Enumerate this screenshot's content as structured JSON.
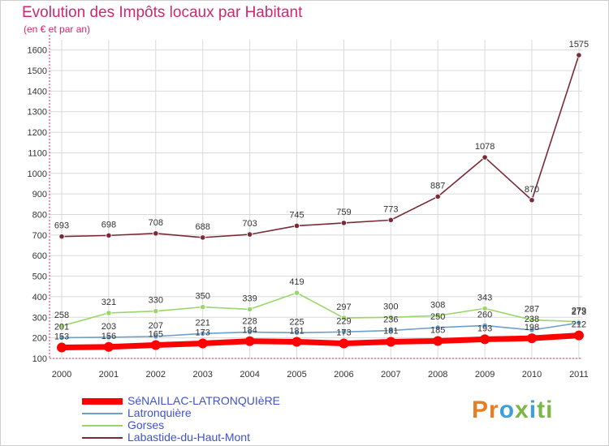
{
  "header": {
    "title": "Evolution des Impôts locaux par Habitant",
    "subtitle": "(en € et par an)"
  },
  "logo": {
    "text": "Proxiti"
  },
  "colors": {
    "title": "#d2266f",
    "legend_text": "#3f53c9",
    "grid": "#d9d9d9",
    "axis": "#d2266f"
  },
  "chart_data": {
    "type": "line",
    "title": "Evolution des Impôts locaux par Habitant",
    "subtitle": "(en € et par an)",
    "xlabel": "",
    "ylabel": "",
    "x": [
      "2000",
      "2001",
      "2002",
      "2003",
      "2004",
      "2005",
      "2006",
      "2007",
      "2008",
      "2009",
      "2010",
      "2011"
    ],
    "ylim": [
      100,
      1650
    ],
    "yticks": [
      100,
      200,
      300,
      400,
      500,
      600,
      700,
      800,
      900,
      1000,
      1100,
      1200,
      1300,
      1400,
      1500,
      1600
    ],
    "grid": true,
    "legend_position": "bottom-left",
    "series": [
      {
        "name": "Labastide-du-Haut-Mont",
        "color": "#7a2a35",
        "values": [
          693,
          698,
          708,
          688,
          703,
          745,
          759,
          773,
          887,
          1078,
          870,
          1575
        ],
        "labels": [
          "693",
          "698",
          "708",
          "688",
          "703",
          "745",
          "759",
          "773",
          "887",
          "1078",
          "870",
          "1575"
        ]
      },
      {
        "name": "Gorses",
        "color": "#9ad66a",
        "values": [
          258,
          321,
          330,
          350,
          339,
          419,
          297,
          300,
          308,
          343,
          287,
          279
        ],
        "labels": [
          "258",
          "321",
          "330",
          "350",
          "339",
          "419",
          "297",
          "300",
          "308",
          "343",
          "287",
          "279"
        ]
      },
      {
        "name": "Latronquière",
        "color": "#6c9fc9",
        "values": [
          201,
          203,
          207,
          221,
          228,
          225,
          229,
          236,
          250,
          260,
          238,
          273
        ],
        "labels": [
          "201",
          "203",
          "207",
          "221",
          "228",
          "225",
          "229",
          "236",
          "250",
          "260",
          "238",
          "273"
        ]
      },
      {
        "name": "SéNAILLAC-LATRONQUIèRE",
        "color": "#ff0000",
        "values": [
          153,
          156,
          165,
          173,
          184,
          181,
          173,
          181,
          185,
          193,
          198,
          212
        ],
        "labels": [
          "153",
          "156",
          "165",
          "173",
          "184",
          "181",
          "173",
          "181",
          "185",
          "193",
          "198",
          "212"
        ]
      }
    ]
  },
  "legend": {
    "items": [
      {
        "label": "SéNAILLAC-LATRONQUIèRE",
        "color": "#ff0000",
        "thickness": 8
      },
      {
        "label": "Latronquière",
        "color": "#6c9fc9",
        "thickness": 2
      },
      {
        "label": "Gorses",
        "color": "#9ad66a",
        "thickness": 2
      },
      {
        "label": "Labastide-du-Haut-Mont",
        "color": "#7a2a35",
        "thickness": 2
      }
    ]
  }
}
